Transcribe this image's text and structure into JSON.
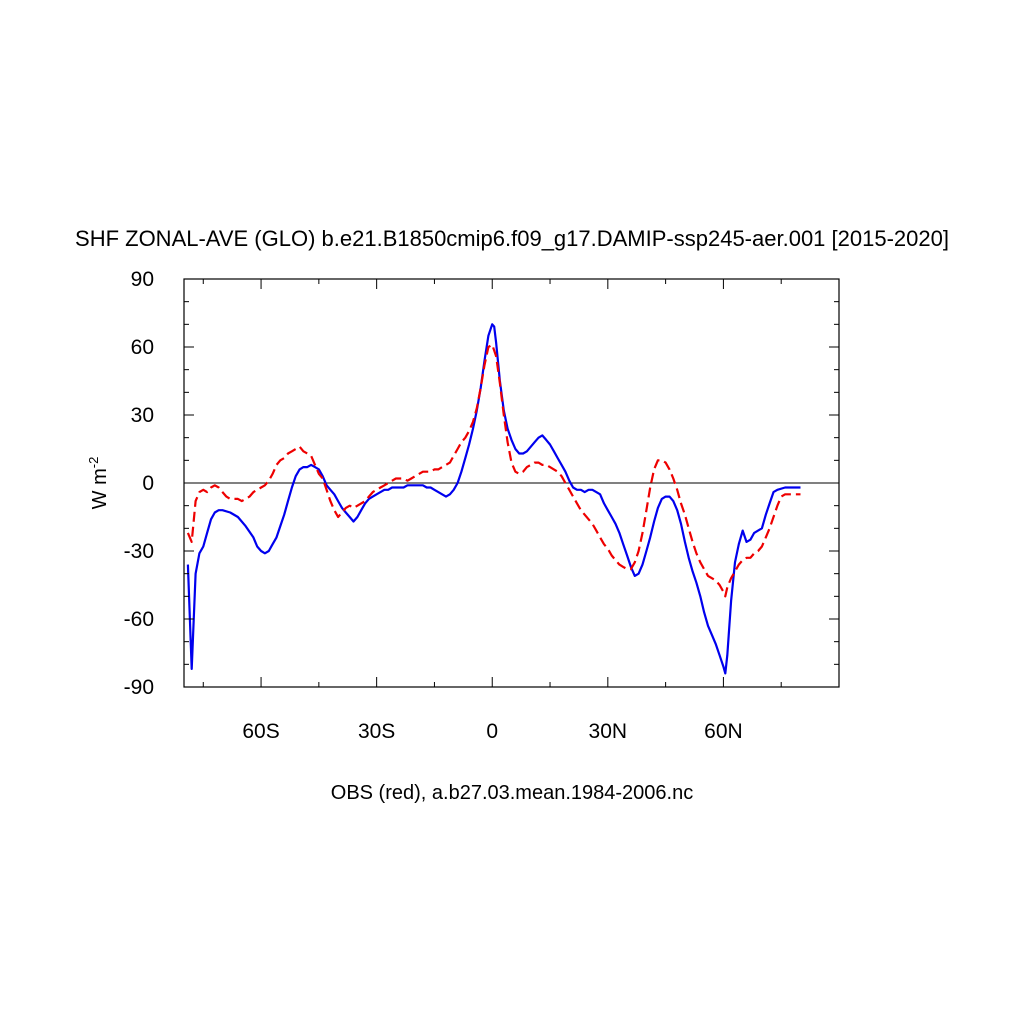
{
  "chart_data": {
    "type": "line",
    "title": "SHF ZONAL-AVE (GLO) b.e21.B1850cmip6.f09_g17.DAMIP-ssp245-aer.001 [2015-2020]",
    "ylabel_base": "W m",
    "ylabel_exp": "-2",
    "footer": "OBS (red), a.b27.03.mean.1984-2006.nc",
    "xlim": [
      -80,
      90
    ],
    "ylim": [
      -90,
      90
    ],
    "x_ticks": [
      {
        "value": -60,
        "label": "60S"
      },
      {
        "value": -30,
        "label": "30S"
      },
      {
        "value": 0,
        "label": "0"
      },
      {
        "value": 30,
        "label": "30N"
      },
      {
        "value": 60,
        "label": "60N"
      }
    ],
    "y_ticks": [
      {
        "value": 90,
        "label": "90"
      },
      {
        "value": 60,
        "label": "60"
      },
      {
        "value": 30,
        "label": "30"
      },
      {
        "value": 0,
        "label": "0"
      },
      {
        "value": -30,
        "label": "-30"
      },
      {
        "value": -60,
        "label": "-60"
      },
      {
        "value": -90,
        "label": "-90"
      }
    ],
    "zero_line": true,
    "series": [
      {
        "color": "#0000ee",
        "dash": "solid",
        "points": [
          [
            -79,
            -36
          ],
          [
            -78,
            -82
          ],
          [
            -77,
            -40
          ],
          [
            -76,
            -31
          ],
          [
            -75,
            -28
          ],
          [
            -74,
            -22
          ],
          [
            -73,
            -16
          ],
          [
            -72,
            -13
          ],
          [
            -71,
            -12
          ],
          [
            -70,
            -12
          ],
          [
            -68,
            -13
          ],
          [
            -66,
            -15
          ],
          [
            -64,
            -19
          ],
          [
            -62,
            -24
          ],
          [
            -61,
            -28
          ],
          [
            -60,
            -30
          ],
          [
            -59,
            -31
          ],
          [
            -58,
            -30
          ],
          [
            -57,
            -27
          ],
          [
            -56,
            -24
          ],
          [
            -55,
            -19
          ],
          [
            -54,
            -14
          ],
          [
            -53,
            -8
          ],
          [
            -52,
            -2
          ],
          [
            -51,
            3
          ],
          [
            -50,
            6
          ],
          [
            -49,
            7
          ],
          [
            -48,
            7
          ],
          [
            -47,
            8
          ],
          [
            -46,
            7
          ],
          [
            -45,
            6
          ],
          [
            -44,
            3
          ],
          [
            -43,
            -1
          ],
          [
            -42,
            -3
          ],
          [
            -41,
            -5
          ],
          [
            -40,
            -8
          ],
          [
            -39,
            -11
          ],
          [
            -38,
            -13
          ],
          [
            -37,
            -15
          ],
          [
            -36,
            -17
          ],
          [
            -35,
            -15
          ],
          [
            -34,
            -12
          ],
          [
            -33,
            -9
          ],
          [
            -32,
            -7
          ],
          [
            -31,
            -6
          ],
          [
            -30,
            -5
          ],
          [
            -29,
            -4
          ],
          [
            -28,
            -3
          ],
          [
            -27,
            -3
          ],
          [
            -26,
            -2
          ],
          [
            -25,
            -2
          ],
          [
            -24,
            -2
          ],
          [
            -23,
            -2
          ],
          [
            -22,
            -1
          ],
          [
            -21,
            -1
          ],
          [
            -20,
            -1
          ],
          [
            -19,
            -1
          ],
          [
            -18,
            -1
          ],
          [
            -17,
            -2
          ],
          [
            -16,
            -2
          ],
          [
            -15,
            -3
          ],
          [
            -14,
            -4
          ],
          [
            -13,
            -5
          ],
          [
            -12,
            -6
          ],
          [
            -11,
            -5
          ],
          [
            -10,
            -3
          ],
          [
            -9,
            0
          ],
          [
            -8,
            5
          ],
          [
            -7,
            11
          ],
          [
            -6,
            17
          ],
          [
            -5,
            24
          ],
          [
            -4,
            32
          ],
          [
            -3,
            42
          ],
          [
            -2,
            54
          ],
          [
            -1,
            65
          ],
          [
            0,
            70
          ],
          [
            0.5,
            69
          ],
          [
            1,
            62
          ],
          [
            2,
            45
          ],
          [
            3,
            32
          ],
          [
            4,
            24
          ],
          [
            5,
            19
          ],
          [
            6,
            15
          ],
          [
            7,
            13
          ],
          [
            8,
            13
          ],
          [
            9,
            14
          ],
          [
            10,
            16
          ],
          [
            11,
            18
          ],
          [
            12,
            20
          ],
          [
            13,
            21
          ],
          [
            14,
            19
          ],
          [
            15,
            17
          ],
          [
            16,
            14
          ],
          [
            17,
            11
          ],
          [
            18,
            8
          ],
          [
            19,
            5
          ],
          [
            20,
            1
          ],
          [
            21,
            -2
          ],
          [
            22,
            -3
          ],
          [
            23,
            -3
          ],
          [
            24,
            -4
          ],
          [
            25,
            -3
          ],
          [
            26,
            -3
          ],
          [
            27,
            -4
          ],
          [
            28,
            -5
          ],
          [
            29,
            -9
          ],
          [
            30,
            -12
          ],
          [
            31,
            -15
          ],
          [
            32,
            -18
          ],
          [
            33,
            -22
          ],
          [
            34,
            -27
          ],
          [
            35,
            -32
          ],
          [
            36,
            -37
          ],
          [
            37,
            -41
          ],
          [
            38,
            -40
          ],
          [
            39,
            -36
          ],
          [
            40,
            -30
          ],
          [
            41,
            -24
          ],
          [
            42,
            -17
          ],
          [
            43,
            -11
          ],
          [
            44,
            -7
          ],
          [
            45,
            -6
          ],
          [
            46,
            -6
          ],
          [
            47,
            -8
          ],
          [
            48,
            -12
          ],
          [
            49,
            -18
          ],
          [
            50,
            -26
          ],
          [
            51,
            -33
          ],
          [
            52,
            -39
          ],
          [
            53,
            -44
          ],
          [
            54,
            -50
          ],
          [
            55,
            -57
          ],
          [
            56,
            -63
          ],
          [
            57,
            -67
          ],
          [
            58,
            -71
          ],
          [
            59,
            -76
          ],
          [
            60,
            -81
          ],
          [
            60.5,
            -84
          ],
          [
            61,
            -76
          ],
          [
            62,
            -52
          ],
          [
            63,
            -35
          ],
          [
            64,
            -27
          ],
          [
            65,
            -21
          ],
          [
            66,
            -26
          ],
          [
            67,
            -25
          ],
          [
            68,
            -22
          ],
          [
            69,
            -21
          ],
          [
            70,
            -20
          ],
          [
            71,
            -14
          ],
          [
            72,
            -9
          ],
          [
            73,
            -4
          ],
          [
            74,
            -3
          ],
          [
            76,
            -2
          ],
          [
            80,
            -2
          ]
        ]
      },
      {
        "color": "#ee0000",
        "dash": "dashed",
        "points": [
          [
            -79,
            -22
          ],
          [
            -78,
            -26
          ],
          [
            -77,
            -8
          ],
          [
            -76,
            -4
          ],
          [
            -75,
            -3
          ],
          [
            -74,
            -4
          ],
          [
            -73,
            -2
          ],
          [
            -72,
            -1
          ],
          [
            -71,
            -2
          ],
          [
            -70,
            -4
          ],
          [
            -69,
            -6
          ],
          [
            -68,
            -7
          ],
          [
            -67,
            -7
          ],
          [
            -66,
            -7
          ],
          [
            -65,
            -8
          ],
          [
            -64,
            -7
          ],
          [
            -63,
            -6
          ],
          [
            -62,
            -4
          ],
          [
            -61,
            -3
          ],
          [
            -60,
            -2
          ],
          [
            -59,
            -1
          ],
          [
            -58,
            1
          ],
          [
            -57,
            4
          ],
          [
            -56,
            8
          ],
          [
            -55,
            10
          ],
          [
            -54,
            11
          ],
          [
            -53,
            13
          ],
          [
            -52,
            14
          ],
          [
            -51,
            15
          ],
          [
            -50,
            16
          ],
          [
            -49,
            14
          ],
          [
            -48,
            13
          ],
          [
            -47,
            12
          ],
          [
            -46,
            8
          ],
          [
            -45,
            4
          ],
          [
            -44,
            2
          ],
          [
            -43,
            -3
          ],
          [
            -42,
            -8
          ],
          [
            -41,
            -12
          ],
          [
            -40,
            -15
          ],
          [
            -39,
            -13
          ],
          [
            -38,
            -11
          ],
          [
            -37,
            -10
          ],
          [
            -36,
            -11
          ],
          [
            -35,
            -10
          ],
          [
            -34,
            -9
          ],
          [
            -33,
            -8
          ],
          [
            -32,
            -6
          ],
          [
            -31,
            -4
          ],
          [
            -30,
            -3
          ],
          [
            -29,
            -2
          ],
          [
            -28,
            -1
          ],
          [
            -27,
            0
          ],
          [
            -26,
            1
          ],
          [
            -25,
            2
          ],
          [
            -24,
            2
          ],
          [
            -23,
            2
          ],
          [
            -22,
            1
          ],
          [
            -21,
            2
          ],
          [
            -20,
            3
          ],
          [
            -19,
            4
          ],
          [
            -18,
            5
          ],
          [
            -17,
            5
          ],
          [
            -16,
            5
          ],
          [
            -15,
            6
          ],
          [
            -14,
            6
          ],
          [
            -13,
            7
          ],
          [
            -12,
            8
          ],
          [
            -11,
            9
          ],
          [
            -10,
            12
          ],
          [
            -9,
            15
          ],
          [
            -8,
            18
          ],
          [
            -7,
            20
          ],
          [
            -6,
            23
          ],
          [
            -5,
            27
          ],
          [
            -4,
            33
          ],
          [
            -3,
            42
          ],
          [
            -2,
            52
          ],
          [
            -1,
            60
          ],
          [
            0,
            61
          ],
          [
            1,
            56
          ],
          [
            2,
            44
          ],
          [
            3,
            30
          ],
          [
            4,
            18
          ],
          [
            5,
            9
          ],
          [
            6,
            5
          ],
          [
            7,
            4
          ],
          [
            8,
            5
          ],
          [
            9,
            7
          ],
          [
            10,
            8
          ],
          [
            11,
            9
          ],
          [
            12,
            9
          ],
          [
            13,
            8
          ],
          [
            14,
            8
          ],
          [
            15,
            7
          ],
          [
            16,
            6
          ],
          [
            17,
            5
          ],
          [
            18,
            3
          ],
          [
            19,
            0
          ],
          [
            20,
            -3
          ],
          [
            21,
            -6
          ],
          [
            22,
            -9
          ],
          [
            23,
            -12
          ],
          [
            24,
            -14
          ],
          [
            25,
            -16
          ],
          [
            26,
            -18
          ],
          [
            27,
            -21
          ],
          [
            28,
            -24
          ],
          [
            29,
            -27
          ],
          [
            30,
            -29
          ],
          [
            31,
            -32
          ],
          [
            32,
            -34
          ],
          [
            33,
            -36
          ],
          [
            34,
            -37
          ],
          [
            35,
            -38
          ],
          [
            36,
            -38
          ],
          [
            37,
            -35
          ],
          [
            38,
            -30
          ],
          [
            39,
            -22
          ],
          [
            40,
            -12
          ],
          [
            41,
            -2
          ],
          [
            42,
            6
          ],
          [
            43,
            10
          ],
          [
            44,
            10
          ],
          [
            45,
            9
          ],
          [
            46,
            6
          ],
          [
            47,
            2
          ],
          [
            48,
            -3
          ],
          [
            49,
            -9
          ],
          [
            50,
            -14
          ],
          [
            51,
            -20
          ],
          [
            52,
            -26
          ],
          [
            53,
            -31
          ],
          [
            54,
            -35
          ],
          [
            55,
            -38
          ],
          [
            56,
            -41
          ],
          [
            57,
            -42
          ],
          [
            58,
            -43
          ],
          [
            59,
            -45
          ],
          [
            60,
            -48
          ],
          [
            60.5,
            -50
          ],
          [
            61,
            -46
          ],
          [
            62,
            -42
          ],
          [
            63,
            -39
          ],
          [
            64,
            -36
          ],
          [
            65,
            -34
          ],
          [
            66,
            -33
          ],
          [
            67,
            -33
          ],
          [
            68,
            -31
          ],
          [
            69,
            -30
          ],
          [
            70,
            -28
          ],
          [
            71,
            -24
          ],
          [
            72,
            -20
          ],
          [
            73,
            -15
          ],
          [
            74,
            -10
          ],
          [
            75,
            -6
          ],
          [
            76,
            -5
          ],
          [
            78,
            -5
          ],
          [
            80,
            -5
          ]
        ]
      }
    ]
  }
}
